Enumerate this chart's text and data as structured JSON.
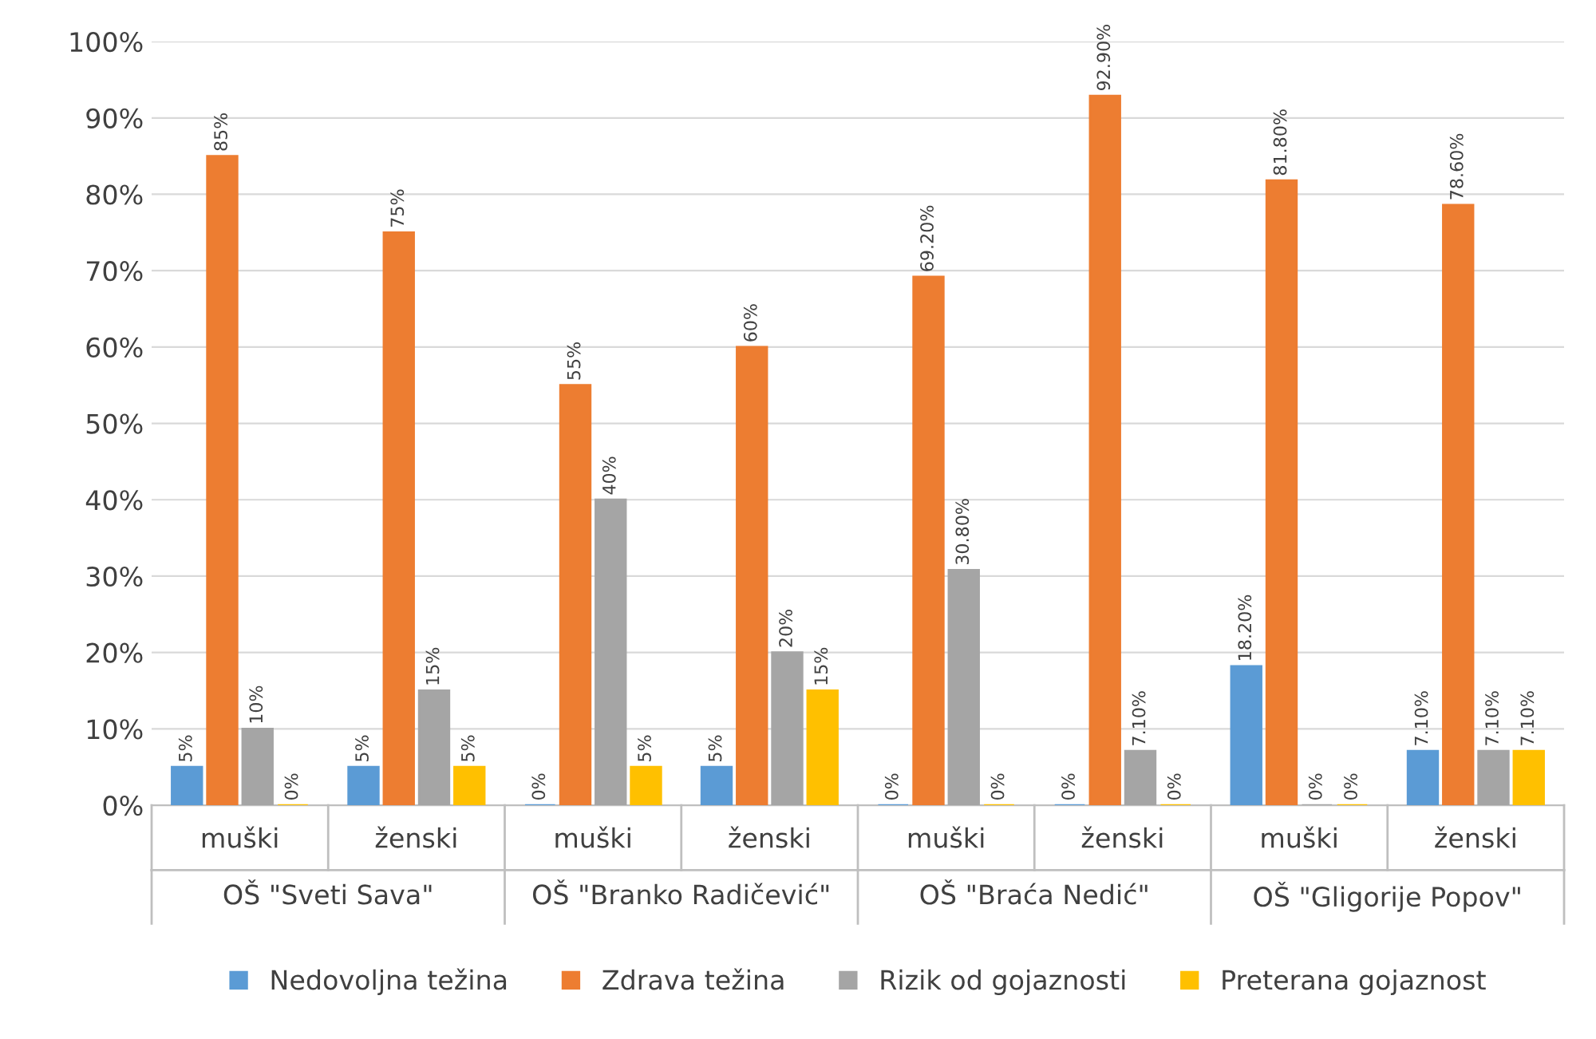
{
  "chart_data": {
    "type": "bar",
    "categories": [
      "muški",
      "ženski",
      "muški",
      "ženski",
      "muški",
      "ženski",
      "muški",
      "ženski"
    ],
    "series": [
      {
        "name": "Nedovoljna težina",
        "color": "#5b9bd5",
        "values": [
          5,
          5,
          0,
          5,
          0,
          0,
          18.2,
          7.1
        ],
        "value_labels": [
          "5%",
          "5%",
          "0%",
          "5%",
          "0%",
          "0%",
          "18.20%",
          "7.10%"
        ]
      },
      {
        "name": "Zdrava težina",
        "color": "#ed7d31",
        "values": [
          85,
          75,
          55,
          60,
          69.2,
          92.9,
          81.8,
          78.6
        ],
        "value_labels": [
          "85%",
          "75%",
          "55%",
          "60%",
          "69.20%",
          "92.90%",
          "81.80%",
          "78.60%"
        ]
      },
      {
        "name": "Rizik od gojaznosti",
        "color": "#a5a5a5",
        "values": [
          10,
          15,
          40,
          20,
          30.8,
          7.1,
          0,
          7.1
        ],
        "value_labels": [
          "10%",
          "15%",
          "40%",
          "20%",
          "30.80%",
          "7.10%",
          "0%",
          "7.10%"
        ]
      },
      {
        "name": "Preterana gojaznost",
        "color": "#ffc000",
        "values": [
          0,
          5,
          5,
          15,
          0,
          0,
          0,
          7.1
        ],
        "value_labels": [
          "0%",
          "5%",
          "5%",
          "15%",
          "0%",
          "0%",
          "0%",
          "7.10%"
        ]
      }
    ],
    "annotations": [
      "OŠ \"Sveti Sava\"",
      "OŠ \"Branko Radičević\"",
      "OŠ \"Braća Nedić\"",
      "OŠ \"Gligorije Popov\""
    ],
    "ylim": [
      0,
      100
    ],
    "yticks": [
      {
        "value": 0,
        "label": "0%"
      },
      {
        "value": 10,
        "label": "10%"
      },
      {
        "value": 20,
        "label": "20%"
      },
      {
        "value": 30,
        "label": "30%"
      },
      {
        "value": 40,
        "label": "40%"
      },
      {
        "value": 50,
        "label": "50%"
      },
      {
        "value": 60,
        "label": "60%"
      },
      {
        "value": 70,
        "label": "70%"
      },
      {
        "value": 80,
        "label": "80%"
      },
      {
        "value": 90,
        "label": "90%"
      },
      {
        "value": 100,
        "label": "100%"
      }
    ],
    "grid": "y",
    "legend": "bottom"
  }
}
